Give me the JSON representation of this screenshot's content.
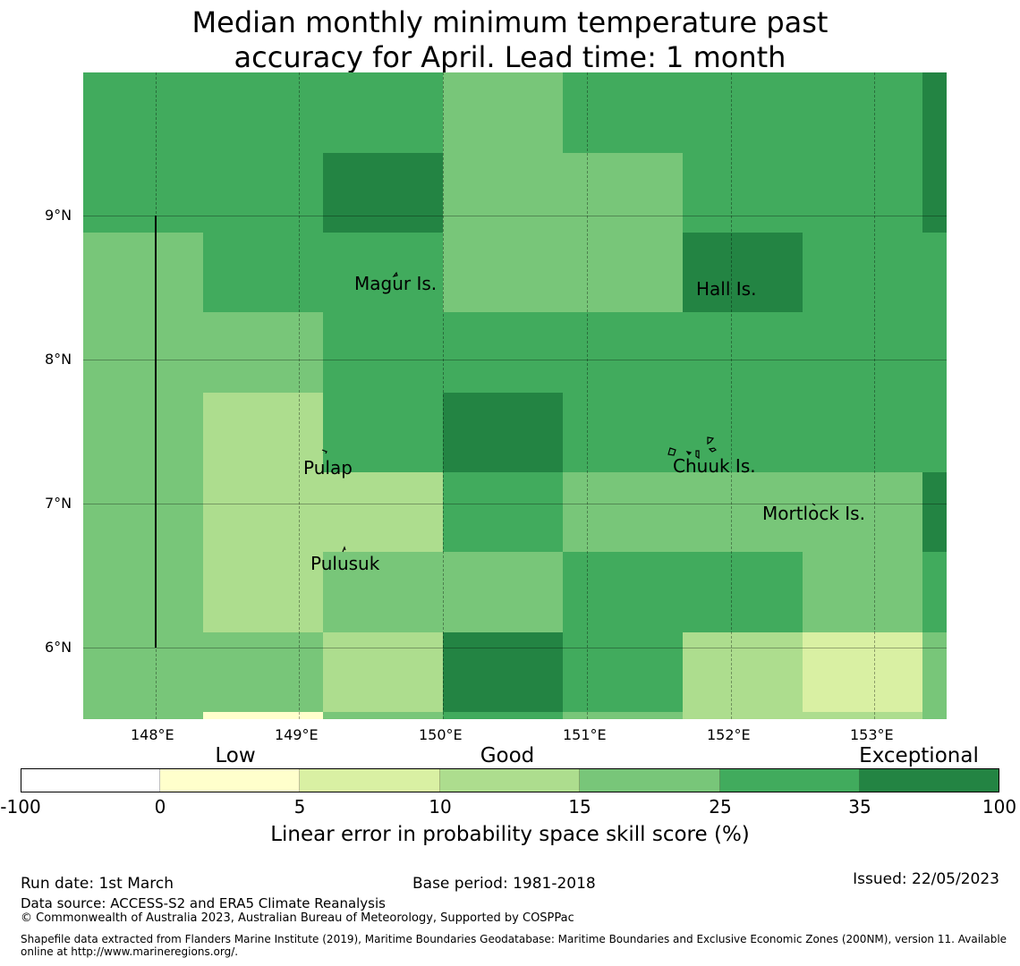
{
  "title_lines": [
    "Median monthly minimum temperature past",
    "accuracy for April. Lead time: 1 month"
  ],
  "map": {
    "lon_ticks": [
      "148°E",
      "149°E",
      "150°E",
      "151°E",
      "152°E",
      "153°E"
    ],
    "lat_ticks": [
      "9°N",
      "8°N",
      "7°N",
      "6°N"
    ],
    "places": [
      "Magur Is.",
      "Hall Is.",
      "Pulap",
      "Chuuk Is.",
      "Mortlock Is.",
      "Pulusuk"
    ],
    "grid_classes": [
      [
        5,
        5,
        5,
        4,
        5,
        5,
        5,
        6
      ],
      [
        5,
        5,
        6,
        4,
        4,
        5,
        5,
        6
      ],
      [
        4,
        5,
        5,
        4,
        4,
        6,
        5,
        5
      ],
      [
        4,
        4,
        5,
        5,
        5,
        5,
        5,
        5
      ],
      [
        4,
        3,
        5,
        6,
        5,
        5,
        5,
        5
      ],
      [
        4,
        3,
        3,
        5,
        4,
        4,
        4,
        6
      ],
      [
        4,
        3,
        4,
        4,
        5,
        5,
        4,
        5
      ],
      [
        4,
        4,
        3,
        6,
        5,
        3,
        2,
        4
      ],
      [
        4,
        1,
        4,
        5,
        4,
        3,
        3,
        4
      ]
    ]
  },
  "colorbar": {
    "colors": [
      "#ffffff",
      "#ffffcc",
      "#d9f0a3",
      "#addd8e",
      "#78c679",
      "#41ab5d",
      "#238443"
    ],
    "tick_labels": [
      "-100",
      "0",
      "5",
      "10",
      "15",
      "25",
      "35",
      "100"
    ],
    "categories": [
      "Low",
      "Good",
      "Exceptional"
    ],
    "axis_label": "Linear error in probability space skill score (%)"
  },
  "footer": {
    "run_date": "Run date: 1st March",
    "base_period": "Base period: 1981-2018",
    "issued": "Issued: 22/05/2023",
    "data_source": "Data source: ACCESS-S2 and ERA5 Climate Reanalysis",
    "copyright": "© Commonwealth of Australia 2023, Australian Bureau of Meteorology, Supported by COSPPac",
    "shapefile_1": "Shapefile data extracted from Flanders Marine Institute (2019), Maritime Boundaries Geodatabase: Maritime Boundaries and Exclusive Economic Zones (200NM), version 11. Available",
    "shapefile_2": "online at http://www.marineregions.org/."
  }
}
